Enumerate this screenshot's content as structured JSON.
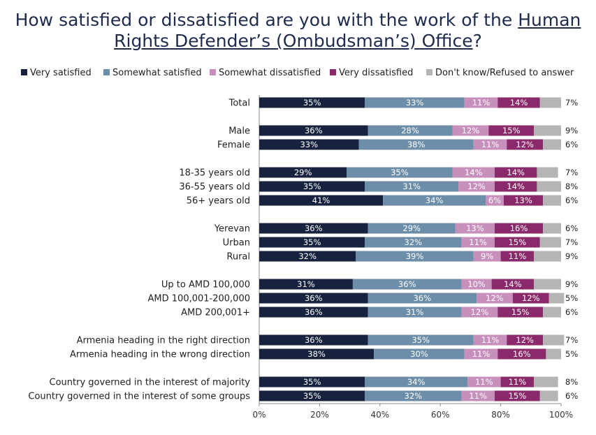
{
  "title": {
    "line1": "How satisfied or dissatisfied are you with the work of the ",
    "line1_link": "Human",
    "line2_link": "Rights Defender’s (Ombudsman’s) Office",
    "line2_end": "?"
  },
  "colors": {
    "very_satisfied": "#17223f",
    "somewhat_satisfied": "#6d8ea8",
    "somewhat_dissatisfied": "#c68fbc",
    "very_dissatisfied": "#8a2a6a",
    "dont_know": "#b5b5b5"
  },
  "chart_data": {
    "type": "bar",
    "orientation": "horizontal",
    "stacked": true,
    "xlim": [
      0,
      100
    ],
    "xticks": [
      "0%",
      "20%",
      "40%",
      "60%",
      "80%",
      "100%"
    ],
    "legend_position": "top",
    "categories": [
      "Total",
      "Male",
      "Female",
      "18-35 years old",
      "36-55 years old",
      "56+ years old",
      "Yerevan",
      "Urban",
      "Rural",
      "Up to AMD 100,000",
      "AMD 100,001-200,000",
      "AMD 200,001+",
      "Armenia heading in the right direction",
      "Armenia heading in the wrong direction",
      "Country governed in the interest of majority",
      "Country governed in the interest of some groups"
    ],
    "series": [
      {
        "name": "Very satisfied",
        "color_key": "very_satisfied",
        "values": [
          35,
          36,
          33,
          29,
          35,
          41,
          36,
          35,
          32,
          31,
          36,
          36,
          36,
          38,
          35,
          35
        ]
      },
      {
        "name": "Somewhat satisfied",
        "color_key": "somewhat_satisfied",
        "values": [
          33,
          28,
          38,
          35,
          31,
          34,
          29,
          32,
          39,
          36,
          36,
          31,
          35,
          30,
          34,
          32
        ]
      },
      {
        "name": "Somewhat dissatisfied",
        "color_key": "somewhat_dissatisfied",
        "values": [
          11,
          12,
          11,
          14,
          12,
          6,
          13,
          11,
          9,
          10,
          12,
          12,
          11,
          11,
          11,
          11
        ]
      },
      {
        "name": "Very dissatisfied",
        "color_key": "very_dissatisfied",
        "values": [
          14,
          15,
          12,
          14,
          14,
          13,
          16,
          15,
          11,
          14,
          12,
          15,
          12,
          16,
          11,
          15
        ]
      },
      {
        "name": "Don't know/Refused to answer",
        "color_key": "dont_know",
        "values": [
          7,
          9,
          6,
          7,
          8,
          6,
          6,
          7,
          9,
          9,
          5,
          6,
          7,
          5,
          8,
          6
        ]
      }
    ]
  }
}
